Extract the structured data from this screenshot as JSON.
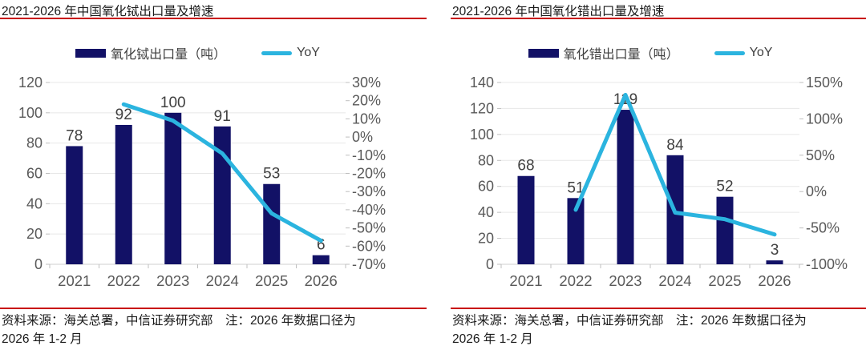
{
  "colors": {
    "bar": "#121166",
    "line": "#2bb4df",
    "rule": "#c80000",
    "grid": "#e7e7e7",
    "axis_line": "#cfcfcf",
    "tick": "#bfbfbf",
    "axis_text": "#595959",
    "data_label_text": "#404040",
    "title_text": "#1a1a1a"
  },
  "charts": [
    {
      "title": "2021-2026 年中国氧化铽出口量及增速",
      "legend": {
        "bar_label": "氧化铽出口量（吨）",
        "line_label": "YoY"
      },
      "source": {
        "line1": "资料来源：海关总署，中信证券研究部　注：2026 年数据口径为",
        "line2": "2026 年 1-2 月"
      },
      "chart_data": {
        "type": "bar+line",
        "categories": [
          "2021",
          "2022",
          "2023",
          "2024",
          "2025",
          "2026"
        ],
        "series": [
          {
            "name": "氧化铽出口量（吨）",
            "type": "bar",
            "axis": "left",
            "values": [
              78,
              92,
              100,
              91,
              53,
              6
            ]
          },
          {
            "name": "YoY",
            "type": "line",
            "axis": "right",
            "unit": "%",
            "values": [
              null,
              18,
              9,
              -9,
              -42,
              -57
            ]
          }
        ],
        "left_axis": {
          "min": 0,
          "max": 120,
          "step": 20,
          "tick_values": [
            0,
            20,
            40,
            60,
            80,
            100,
            120
          ],
          "tick_labels": [
            "0",
            "20",
            "40",
            "60",
            "80",
            "100",
            "120"
          ]
        },
        "right_axis": {
          "min": -70,
          "max": 30,
          "step": 10,
          "format": "percent",
          "tick_values": [
            30,
            20,
            10,
            0,
            -10,
            -20,
            -30,
            -40,
            -50,
            -60,
            -70
          ],
          "tick_labels": [
            "30%",
            "20%",
            "10%",
            "0%",
            "-10%",
            "-20%",
            "-30%",
            "-40%",
            "-50%",
            "-60%",
            "-70%"
          ]
        },
        "legend_position": "top",
        "grid": "horizontal"
      }
    },
    {
      "title": "2021-2026 年中国氧化错出口量及增速",
      "legend": {
        "bar_label": "氧化错出口量（吨）",
        "line_label": "YoY"
      },
      "source": {
        "line1": "资料来源：海关总署，中信证券研究部　注：2026 年数据口径为",
        "line2": "2026 年 1-2 月"
      },
      "chart_data": {
        "type": "bar+line",
        "categories": [
          "2021",
          "2022",
          "2023",
          "2024",
          "2025",
          "2026"
        ],
        "series": [
          {
            "name": "氧化错出口量（吨）",
            "type": "bar",
            "axis": "left",
            "values": [
              68,
              51,
              119,
              84,
              52,
              3
            ]
          },
          {
            "name": "YoY",
            "type": "line",
            "axis": "right",
            "unit": "%",
            "values": [
              null,
              -25,
              133,
              -29,
              -38,
              -59
            ]
          }
        ],
        "left_axis": {
          "min": 0,
          "max": 140,
          "step": 20,
          "tick_values": [
            0,
            20,
            40,
            60,
            80,
            100,
            120,
            140
          ],
          "tick_labels": [
            "0",
            "20",
            "40",
            "60",
            "80",
            "100",
            "120",
            "140"
          ]
        },
        "right_axis": {
          "min": -100,
          "max": 150,
          "step": 50,
          "format": "percent",
          "tick_values": [
            150,
            100,
            50,
            0,
            -50,
            -100
          ],
          "tick_labels": [
            "150%",
            "100%",
            "50%",
            "0%",
            "-50%",
            "-100%"
          ]
        },
        "legend_position": "top",
        "grid": "horizontal"
      }
    }
  ]
}
